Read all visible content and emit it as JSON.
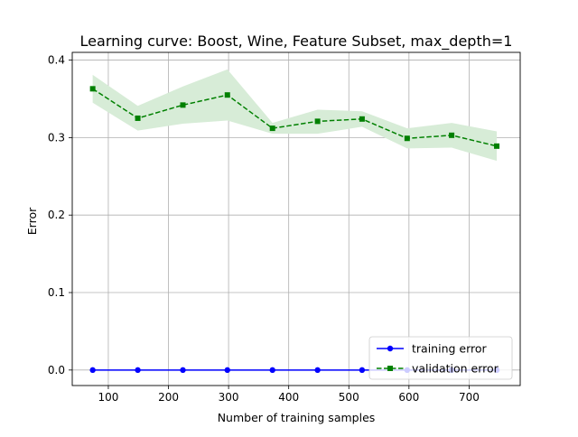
{
  "chart_data": {
    "type": "line",
    "title": "Learning curve: Boost, Wine, Feature Subset, max_depth=1",
    "xlabel": "Number of training samples",
    "ylabel": "Error",
    "xlim": [
      40,
      785
    ],
    "ylim": [
      -0.02,
      0.41
    ],
    "xticks": [
      100,
      200,
      300,
      400,
      500,
      600,
      700
    ],
    "xtick_labels": [
      "100",
      "200",
      "300",
      "400",
      "500",
      "600",
      "700"
    ],
    "yticks": [
      0.0,
      0.1,
      0.2,
      0.3,
      0.4
    ],
    "ytick_labels": [
      "0.0",
      "0.1",
      "0.2",
      "0.3",
      "0.4"
    ],
    "grid": true,
    "legend_position": "lower-right",
    "x": [
      74,
      149,
      224,
      298,
      373,
      448,
      522,
      597,
      671,
      746
    ],
    "series": [
      {
        "name": "training error",
        "color": "#0000ff",
        "marker": "circle",
        "linestyle": "solid",
        "values": [
          0.0,
          0.0,
          0.0,
          0.0,
          0.0,
          0.0,
          0.0,
          0.0,
          0.0,
          0.0
        ],
        "band_lower": [
          0.0,
          0.0,
          0.0,
          0.0,
          0.0,
          0.0,
          0.0,
          0.0,
          0.0,
          0.0
        ],
        "band_upper": [
          0.0,
          0.0,
          0.0,
          0.0,
          0.0,
          0.0,
          0.0,
          0.0,
          0.0,
          0.0
        ]
      },
      {
        "name": "validation error",
        "color": "#008000",
        "marker": "square",
        "linestyle": "dashed",
        "band_color": "#d7ecd7",
        "values": [
          0.363,
          0.325,
          0.342,
          0.355,
          0.312,
          0.321,
          0.324,
          0.299,
          0.303,
          0.289
        ],
        "band_lower": [
          0.345,
          0.309,
          0.318,
          0.322,
          0.305,
          0.305,
          0.314,
          0.286,
          0.287,
          0.27
        ],
        "band_upper": [
          0.381,
          0.341,
          0.366,
          0.388,
          0.319,
          0.336,
          0.334,
          0.312,
          0.319,
          0.308
        ]
      }
    ]
  }
}
